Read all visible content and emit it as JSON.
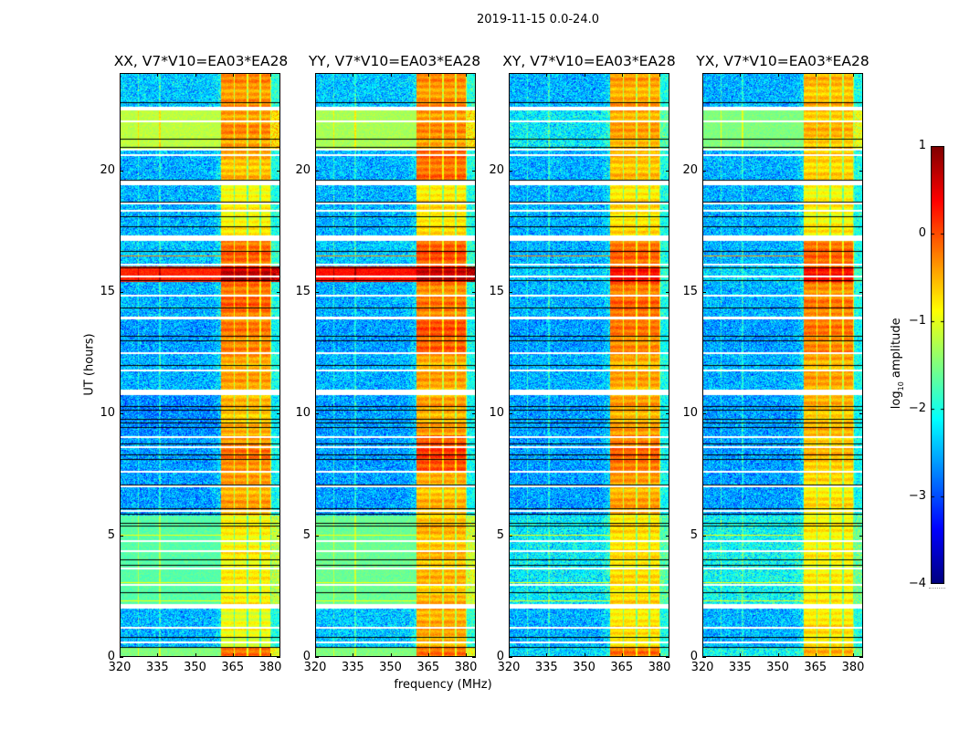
{
  "chart_data": {
    "type": "heatmap",
    "title": "2019-11-15 0.0-24.0",
    "xlabel": "frequency (MHz)",
    "ylabel": "UT (hours)",
    "xlim": [
      320,
      384
    ],
    "ylim": [
      0,
      24
    ],
    "xticks": [
      320,
      335,
      350,
      365,
      380
    ],
    "yticks": [
      0,
      5,
      10,
      15,
      20
    ],
    "panels": [
      {
        "title": "XX, V7*V10=EA03*EA28"
      },
      {
        "title": "YY, V7*V10=EA03*EA28"
      },
      {
        "title": "XY, V7*V10=EA03*EA28"
      },
      {
        "title": "YX, V7*V10=EA03*EA28"
      }
    ],
    "rfi_band_mhz": [
      360.5,
      380.3
    ],
    "rfi_blocks_mhz": [
      [
        360.5,
        365.3
      ],
      [
        366.0,
        370.7
      ],
      [
        371.4,
        375.5
      ],
      [
        376.2,
        380.0
      ]
    ],
    "segments_note": "log10 amplitude levels per segment, per panel order XX,YY,XY,YX",
    "segments": [
      {
        "t": [
          0.0,
          0.4
        ],
        "bg": [
          -1.5,
          -1.5,
          -2.3,
          -2.1
        ],
        "band": [
          -0.3,
          -0.3,
          -0.3,
          -0.6
        ]
      },
      {
        "t": [
          0.4,
          2.0
        ],
        "bg": [
          -2.5,
          -2.4,
          -2.5,
          -2.5
        ],
        "band": [
          -1.0,
          -0.5,
          -0.8,
          -0.8
        ]
      },
      {
        "t": [
          2.15,
          5.8
        ],
        "bg": [
          -1.7,
          -1.6,
          -2.2,
          -2.1
        ],
        "band": [
          -0.9,
          -0.6,
          -0.8,
          -0.9
        ]
      },
      {
        "t": [
          5.8,
          7.6
        ],
        "bg": [
          -2.6,
          -2.6,
          -2.6,
          -2.6
        ],
        "band": [
          -0.5,
          -0.6,
          -0.5,
          -0.8
        ]
      },
      {
        "t": [
          7.6,
          9.1
        ],
        "bg": [
          -2.6,
          -2.6,
          -2.6,
          -2.6
        ],
        "band": [
          -0.3,
          0.0,
          -0.2,
          -0.6
        ]
      },
      {
        "t": [
          9.1,
          10.75
        ],
        "bg": [
          -2.7,
          -2.6,
          -2.6,
          -2.6
        ],
        "band": [
          -0.6,
          -0.5,
          -0.5,
          -0.6
        ]
      },
      {
        "t": [
          10.97,
          12.5
        ],
        "bg": [
          -2.5,
          -2.5,
          -2.5,
          -2.5
        ],
        "band": [
          -0.5,
          -0.5,
          -0.5,
          -0.5
        ]
      },
      {
        "t": [
          12.5,
          14.0
        ],
        "bg": [
          -2.6,
          -2.6,
          -2.6,
          -2.6
        ],
        "band": [
          -0.3,
          -0.1,
          -0.3,
          -0.3
        ]
      },
      {
        "t": [
          14.0,
          15.4
        ],
        "bg": [
          -2.5,
          -2.5,
          -2.5,
          -2.5
        ],
        "band": [
          -0.2,
          -0.3,
          -0.2,
          -0.3
        ]
      },
      {
        "t": [
          15.4,
          16.05
        ],
        "bg": [
          0.2,
          0.3,
          -2.4,
          -2.3
        ],
        "band": [
          0.6,
          0.6,
          0.3,
          0.3
        ]
      },
      {
        "t": [
          16.05,
          17.1
        ],
        "bg": [
          -2.4,
          -2.4,
          -2.5,
          -2.5
        ],
        "band": [
          -0.2,
          -0.1,
          -0.2,
          -0.2
        ]
      },
      {
        "t": [
          17.3,
          19.4
        ],
        "bg": [
          -2.5,
          -2.5,
          -2.5,
          -2.5
        ],
        "band": [
          -0.9,
          -0.8,
          -0.8,
          -0.9
        ]
      },
      {
        "t": [
          19.6,
          20.9
        ],
        "bg": [
          -2.5,
          -2.5,
          -2.5,
          -2.5
        ],
        "band": [
          -0.6,
          -0.2,
          -0.6,
          -0.7
        ]
      },
      {
        "t": [
          20.9,
          22.5
        ],
        "bg": [
          -1.2,
          -1.3,
          -2.2,
          -1.5
        ],
        "band": [
          -0.4,
          -0.4,
          -0.5,
          -0.6
        ]
      },
      {
        "t": [
          22.6,
          24.0
        ],
        "bg": [
          -2.4,
          -2.4,
          -2.5,
          -2.5
        ],
        "band": [
          -0.4,
          -0.4,
          -0.5,
          -0.6
        ]
      }
    ],
    "flagged_rows_hours": [
      [
        22.45,
        22.6
      ],
      [
        21.98,
        22.03
      ],
      [
        20.83,
        20.88
      ],
      [
        20.58,
        20.63
      ],
      [
        19.37,
        19.6
      ],
      [
        18.55,
        18.68
      ],
      [
        18.3,
        18.35
      ],
      [
        17.08,
        17.3
      ],
      [
        16.1,
        16.15
      ],
      [
        15.62,
        15.65
      ],
      [
        14.83,
        14.88
      ],
      [
        13.85,
        13.98
      ],
      [
        12.48,
        12.52
      ],
      [
        11.76,
        11.8
      ],
      [
        10.75,
        10.97
      ],
      [
        9.02,
        9.06
      ],
      [
        8.6,
        8.64
      ],
      [
        7.58,
        7.62
      ],
      [
        7.0,
        7.03
      ],
      [
        5.98,
        6.02
      ],
      [
        4.74,
        4.78
      ],
      [
        4.33,
        4.37
      ],
      [
        3.62,
        3.66
      ],
      [
        2.94,
        2.98
      ],
      [
        1.95,
        2.15
      ],
      [
        1.18,
        1.22
      ],
      [
        0.58,
        0.62
      ]
    ],
    "scan_boundaries_hours": [
      22.8,
      21.3,
      20.95,
      19.62,
      18.7,
      18.1,
      17.7,
      16.7,
      16.0,
      15.5,
      14.35,
      13.2,
      13.0,
      12.0,
      10.3,
      10.17,
      9.8,
      9.65,
      9.46,
      8.78,
      8.33,
      8.14,
      7.1,
      6.1,
      5.9,
      5.5,
      5.4,
      4.0,
      3.8,
      2.66,
      0.83,
      0.41
    ],
    "bright_rows_hours": [
      [
        16.5,
        -0.3
      ],
      [
        5.03,
        -0.9
      ],
      [
        3.07,
        -0.9
      ],
      [
        2.33,
        -0.9
      ],
      [
        2.18,
        -0.8
      ]
    ],
    "colorbar": {
      "colormap": "jet",
      "range": [
        -4,
        1
      ],
      "ticks": [
        1,
        0,
        -1,
        -2,
        -3,
        -4
      ],
      "label_main": "log",
      "label_sub": "10",
      "label_rest": " amplitude"
    }
  }
}
